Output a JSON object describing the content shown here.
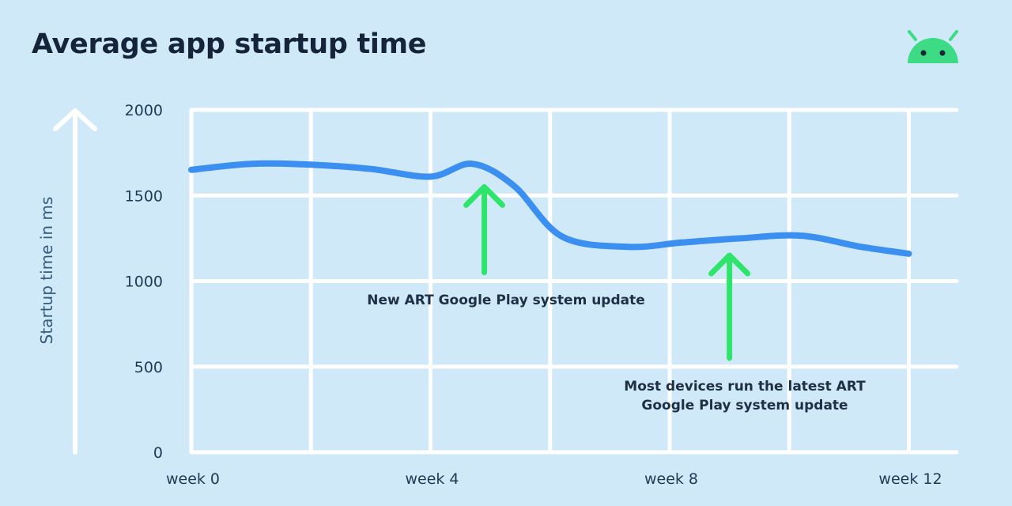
{
  "colors": {
    "background": "#cfe9f8",
    "grid": "#ffffff",
    "series": "#3b8ff0",
    "annotation_arrow": "#2ee56c",
    "android": "#3ddc84"
  },
  "icons": {
    "brand": "android-icon",
    "axis_arrow": "up-arrow-icon"
  },
  "chart_data": {
    "type": "line",
    "title": "Average app startup time",
    "xlabel": "",
    "ylabel": "Startup time in ms",
    "grid": true,
    "xlim": [
      0,
      12.8
    ],
    "ylim": [
      0,
      2000
    ],
    "x_ticks": [
      {
        "value": 0,
        "label": "week 0"
      },
      {
        "value": 4,
        "label": "week 4"
      },
      {
        "value": 8,
        "label": "week 8"
      },
      {
        "value": 12,
        "label": "week 12"
      }
    ],
    "y_ticks": [
      {
        "value": 0,
        "label": "0"
      },
      {
        "value": 500,
        "label": "500"
      },
      {
        "value": 1000,
        "label": "1000"
      },
      {
        "value": 1500,
        "label": "1500"
      },
      {
        "value": 2000,
        "label": "2000"
      }
    ],
    "series": [
      {
        "name": "Average app startup time",
        "x": [
          0,
          1,
          2,
          3,
          4,
          4.7,
          5.4,
          6.2,
          7.3,
          8.2,
          9.2,
          10.2,
          11.2,
          12
        ],
        "values": [
          1650,
          1685,
          1680,
          1655,
          1610,
          1685,
          1555,
          1260,
          1200,
          1225,
          1250,
          1265,
          1200,
          1160
        ]
      }
    ],
    "annotations": [
      {
        "text_lines": [
          "New ART Google Play system update"
        ],
        "arrow_x": 4.9,
        "arrow_from": 1050,
        "arrow_to": 1550
      },
      {
        "text_lines": [
          "Most devices run the latest ART",
          "Google Play system update"
        ],
        "arrow_x": 9.0,
        "arrow_from": 550,
        "arrow_to": 1150
      }
    ]
  }
}
